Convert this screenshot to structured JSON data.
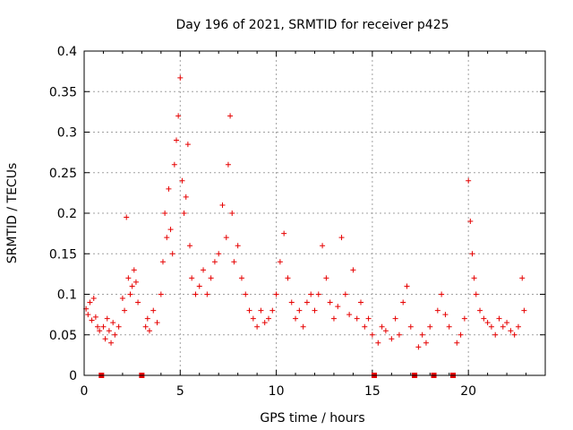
{
  "chart_data": {
    "type": "scatter",
    "title": "Day 196 of 2021, SRMTID for receiver p425",
    "xlabel": "GPS time / hours",
    "ylabel": "SRMTID / TECUs",
    "xlim": [
      0,
      24
    ],
    "ylim": [
      0,
      0.4
    ],
    "x_ticks": [
      0,
      5,
      10,
      15,
      20
    ],
    "x_tick_labels": [
      "0",
      "5",
      "10",
      "15",
      "20"
    ],
    "y_ticks": [
      0,
      0.05,
      0.1,
      0.15,
      0.2,
      0.25,
      0.3,
      0.35,
      0.4
    ],
    "y_tick_labels": [
      "0",
      "0.05",
      "0.1",
      "0.15",
      "0.2",
      "0.25",
      "0.3",
      "0.35",
      "0.4"
    ],
    "grid": true,
    "marker": "plus",
    "color": "#e60000",
    "data_gaps_hours": [
      0.9,
      3.0,
      15.1,
      17.2,
      18.2,
      19.2
    ],
    "x_extent_hours": [
      0,
      23.0
    ],
    "series": [
      {
        "name": "SRMTID",
        "points": [
          [
            0.1,
            0.082
          ],
          [
            0.2,
            0.075
          ],
          [
            0.3,
            0.09
          ],
          [
            0.4,
            0.068
          ],
          [
            0.5,
            0.095
          ],
          [
            0.6,
            0.072
          ],
          [
            0.7,
            0.06
          ],
          [
            0.8,
            0.055
          ],
          [
            1.0,
            0.06
          ],
          [
            1.1,
            0.045
          ],
          [
            1.2,
            0.07
          ],
          [
            1.3,
            0.055
          ],
          [
            1.4,
            0.04
          ],
          [
            1.5,
            0.065
          ],
          [
            1.6,
            0.05
          ],
          [
            1.8,
            0.06
          ],
          [
            2.0,
            0.095
          ],
          [
            2.1,
            0.08
          ],
          [
            2.2,
            0.195
          ],
          [
            2.3,
            0.12
          ],
          [
            2.4,
            0.1
          ],
          [
            2.5,
            0.11
          ],
          [
            2.6,
            0.13
          ],
          [
            2.7,
            0.115
          ],
          [
            2.8,
            0.09
          ],
          [
            3.2,
            0.06
          ],
          [
            3.3,
            0.07
          ],
          [
            3.4,
            0.055
          ],
          [
            3.6,
            0.08
          ],
          [
            3.8,
            0.065
          ],
          [
            4.0,
            0.1
          ],
          [
            4.1,
            0.14
          ],
          [
            4.2,
            0.2
          ],
          [
            4.3,
            0.17
          ],
          [
            4.4,
            0.23
          ],
          [
            4.5,
            0.18
          ],
          [
            4.6,
            0.15
          ],
          [
            4.7,
            0.26
          ],
          [
            4.8,
            0.29
          ],
          [
            4.9,
            0.32
          ],
          [
            5.0,
            0.367
          ],
          [
            5.1,
            0.24
          ],
          [
            5.2,
            0.2
          ],
          [
            5.3,
            0.22
          ],
          [
            5.4,
            0.285
          ],
          [
            5.5,
            0.16
          ],
          [
            5.6,
            0.12
          ],
          [
            5.8,
            0.1
          ],
          [
            6.0,
            0.11
          ],
          [
            6.2,
            0.13
          ],
          [
            6.4,
            0.1
          ],
          [
            6.6,
            0.12
          ],
          [
            6.8,
            0.14
          ],
          [
            7.0,
            0.15
          ],
          [
            7.2,
            0.21
          ],
          [
            7.4,
            0.17
          ],
          [
            7.5,
            0.26
          ],
          [
            7.6,
            0.32
          ],
          [
            7.7,
            0.2
          ],
          [
            7.8,
            0.14
          ],
          [
            8.0,
            0.16
          ],
          [
            8.2,
            0.12
          ],
          [
            8.4,
            0.1
          ],
          [
            8.6,
            0.08
          ],
          [
            8.8,
            0.07
          ],
          [
            9.0,
            0.06
          ],
          [
            9.2,
            0.08
          ],
          [
            9.4,
            0.065
          ],
          [
            9.6,
            0.07
          ],
          [
            9.8,
            0.08
          ],
          [
            10.0,
            0.1
          ],
          [
            10.2,
            0.14
          ],
          [
            10.4,
            0.175
          ],
          [
            10.6,
            0.12
          ],
          [
            10.8,
            0.09
          ],
          [
            11.0,
            0.07
          ],
          [
            11.2,
            0.08
          ],
          [
            11.4,
            0.06
          ],
          [
            11.6,
            0.09
          ],
          [
            11.8,
            0.1
          ],
          [
            12.0,
            0.08
          ],
          [
            12.2,
            0.1
          ],
          [
            12.4,
            0.16
          ],
          [
            12.6,
            0.12
          ],
          [
            12.8,
            0.09
          ],
          [
            13.0,
            0.07
          ],
          [
            13.2,
            0.085
          ],
          [
            13.4,
            0.17
          ],
          [
            13.6,
            0.1
          ],
          [
            13.8,
            0.075
          ],
          [
            14.0,
            0.13
          ],
          [
            14.2,
            0.07
          ],
          [
            14.4,
            0.09
          ],
          [
            14.6,
            0.06
          ],
          [
            14.8,
            0.07
          ],
          [
            15.0,
            0.05
          ],
          [
            15.3,
            0.04
          ],
          [
            15.5,
            0.06
          ],
          [
            15.7,
            0.055
          ],
          [
            16.0,
            0.045
          ],
          [
            16.2,
            0.07
          ],
          [
            16.4,
            0.05
          ],
          [
            16.6,
            0.09
          ],
          [
            16.8,
            0.11
          ],
          [
            17.0,
            0.06
          ],
          [
            17.4,
            0.035
          ],
          [
            17.6,
            0.05
          ],
          [
            17.8,
            0.04
          ],
          [
            18.0,
            0.06
          ],
          [
            18.4,
            0.08
          ],
          [
            18.6,
            0.1
          ],
          [
            18.8,
            0.075
          ],
          [
            19.0,
            0.06
          ],
          [
            19.4,
            0.04
          ],
          [
            19.6,
            0.05
          ],
          [
            19.8,
            0.07
          ],
          [
            20.0,
            0.24
          ],
          [
            20.1,
            0.19
          ],
          [
            20.2,
            0.15
          ],
          [
            20.3,
            0.12
          ],
          [
            20.4,
            0.1
          ],
          [
            20.6,
            0.08
          ],
          [
            20.8,
            0.07
          ],
          [
            21.0,
            0.065
          ],
          [
            21.2,
            0.06
          ],
          [
            21.4,
            0.05
          ],
          [
            21.6,
            0.07
          ],
          [
            21.8,
            0.06
          ],
          [
            22.0,
            0.065
          ],
          [
            22.2,
            0.055
          ],
          [
            22.4,
            0.05
          ],
          [
            22.6,
            0.06
          ],
          [
            22.8,
            0.12
          ],
          [
            22.9,
            0.08
          ]
        ]
      }
    ]
  }
}
